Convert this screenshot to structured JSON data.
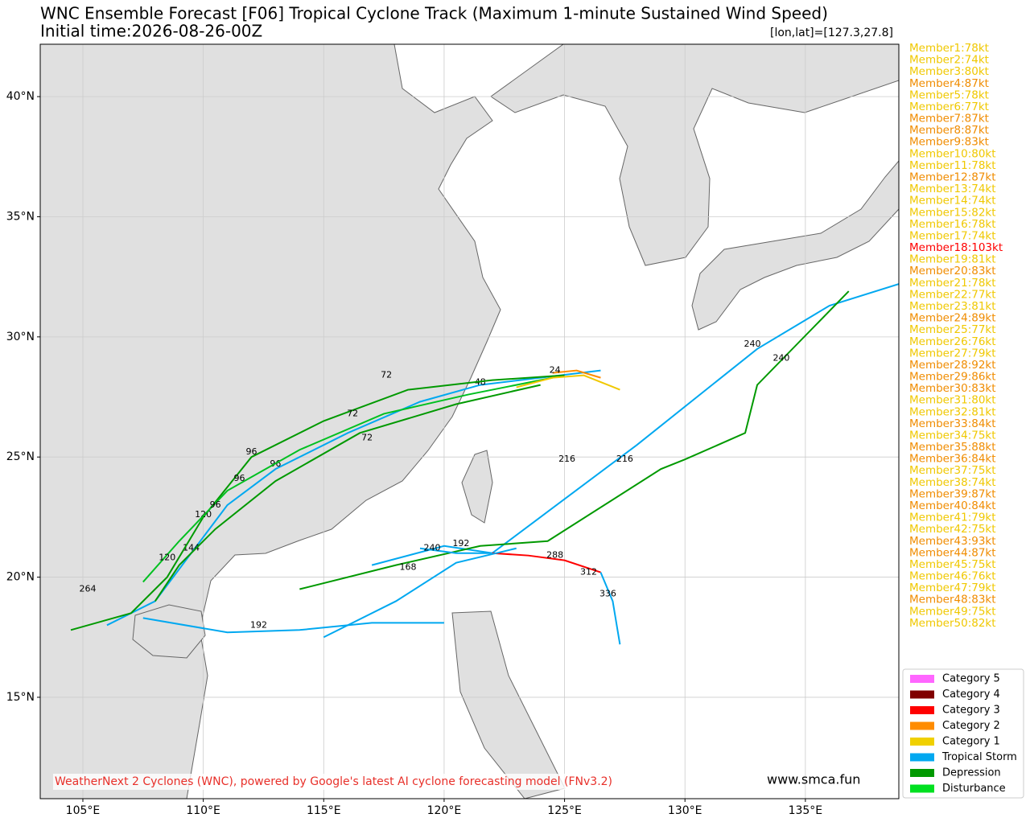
{
  "chart_data": {
    "type": "track",
    "title": "WNC Ensemble Forecast [F06] Tropical Cyclone Track (Maximum 1-minute Sustained Wind Speed)",
    "subtitle": "Initial time:2026-08-26-00Z",
    "position_label": "[lon,lat]=[127.3,27.8]",
    "footer": "WeatherNext 2 Cyclones (WNC), powered by Google's latest AI cyclone forecasting model (FNv3.2)",
    "website": "www.smca.fun",
    "xlim": [
      103.23,
      138.88
    ],
    "ylim": [
      10.78,
      42.18
    ],
    "xticks": [
      {
        "value": 105,
        "label": "105°E"
      },
      {
        "value": 110,
        "label": "110°E"
      },
      {
        "value": 115,
        "label": "115°E"
      },
      {
        "value": 120,
        "label": "120°E"
      },
      {
        "value": 125,
        "label": "125°E"
      },
      {
        "value": 130,
        "label": "130°E"
      },
      {
        "value": 135,
        "label": "135°E"
      }
    ],
    "yticks": [
      {
        "value": 15,
        "label": "15°N"
      },
      {
        "value": 20,
        "label": "20°N"
      },
      {
        "value": 25,
        "label": "25°N"
      },
      {
        "value": 30,
        "label": "30°N"
      },
      {
        "value": 35,
        "label": "35°N"
      },
      {
        "value": 40,
        "label": "40°N"
      }
    ],
    "grid": true,
    "members": [
      {
        "text": "Member1:78kt",
        "color": "#f0c800"
      },
      {
        "text": "Member2:74kt",
        "color": "#f0c800"
      },
      {
        "text": "Member3:80kt",
        "color": "#f0c800"
      },
      {
        "text": "Member4:87kt",
        "color": "#f08c00"
      },
      {
        "text": "Member5:78kt",
        "color": "#f0c800"
      },
      {
        "text": "Member6:77kt",
        "color": "#f0c800"
      },
      {
        "text": "Member7:87kt",
        "color": "#f08c00"
      },
      {
        "text": "Member8:87kt",
        "color": "#f08c00"
      },
      {
        "text": "Member9:83kt",
        "color": "#f08c00"
      },
      {
        "text": "Member10:80kt",
        "color": "#f0c800"
      },
      {
        "text": "Member11:78kt",
        "color": "#f0c800"
      },
      {
        "text": "Member12:87kt",
        "color": "#f08c00"
      },
      {
        "text": "Member13:74kt",
        "color": "#f0c800"
      },
      {
        "text": "Member14:74kt",
        "color": "#f0c800"
      },
      {
        "text": "Member15:82kt",
        "color": "#f0c800"
      },
      {
        "text": "Member16:78kt",
        "color": "#f0c800"
      },
      {
        "text": "Member17:74kt",
        "color": "#f0c800"
      },
      {
        "text": "Member18:103kt",
        "color": "#ff0000"
      },
      {
        "text": "Member19:81kt",
        "color": "#f0c800"
      },
      {
        "text": "Member20:83kt",
        "color": "#f08c00"
      },
      {
        "text": "Member21:78kt",
        "color": "#f0c800"
      },
      {
        "text": "Member22:77kt",
        "color": "#f0c800"
      },
      {
        "text": "Member23:81kt",
        "color": "#f0c800"
      },
      {
        "text": "Member24:89kt",
        "color": "#f08c00"
      },
      {
        "text": "Member25:77kt",
        "color": "#f0c800"
      },
      {
        "text": "Member26:76kt",
        "color": "#f0c800"
      },
      {
        "text": "Member27:79kt",
        "color": "#f0c800"
      },
      {
        "text": "Member28:92kt",
        "color": "#f08c00"
      },
      {
        "text": "Member29:86kt",
        "color": "#f08c00"
      },
      {
        "text": "Member30:83kt",
        "color": "#f08c00"
      },
      {
        "text": "Member31:80kt",
        "color": "#f0c800"
      },
      {
        "text": "Member32:81kt",
        "color": "#f0c800"
      },
      {
        "text": "Member33:84kt",
        "color": "#f08c00"
      },
      {
        "text": "Member34:75kt",
        "color": "#f0c800"
      },
      {
        "text": "Member35:88kt",
        "color": "#f08c00"
      },
      {
        "text": "Member36:84kt",
        "color": "#f08c00"
      },
      {
        "text": "Member37:75kt",
        "color": "#f0c800"
      },
      {
        "text": "Member38:74kt",
        "color": "#f0c800"
      },
      {
        "text": "Member39:87kt",
        "color": "#f08c00"
      },
      {
        "text": "Member40:84kt",
        "color": "#f08c00"
      },
      {
        "text": "Member41:79kt",
        "color": "#f0c800"
      },
      {
        "text": "Member42:75kt",
        "color": "#f0c800"
      },
      {
        "text": "Member43:93kt",
        "color": "#f08c00"
      },
      {
        "text": "Member44:87kt",
        "color": "#f08c00"
      },
      {
        "text": "Member45:75kt",
        "color": "#f0c800"
      },
      {
        "text": "Member46:76kt",
        "color": "#f0c800"
      },
      {
        "text": "Member47:79kt",
        "color": "#f0c800"
      },
      {
        "text": "Member48:83kt",
        "color": "#f08c00"
      },
      {
        "text": "Member49:75kt",
        "color": "#f0c800"
      },
      {
        "text": "Member50:82kt",
        "color": "#f0c800"
      }
    ],
    "legend": [
      {
        "name": "Category 5",
        "color": "#ff66ff"
      },
      {
        "name": "Category 4",
        "color": "#800000"
      },
      {
        "name": "Category 3",
        "color": "#ff0000"
      },
      {
        "name": "Category 2",
        "color": "#ff8c00"
      },
      {
        "name": "Category 1",
        "color": "#f0d000"
      },
      {
        "name": "Tropical Storm",
        "color": "#00a8f0"
      },
      {
        "name": "Depression",
        "color": "#009900"
      },
      {
        "name": "Disturbance",
        "color": "#00e020"
      }
    ],
    "tracks": [
      {
        "color": "#00a8f0",
        "lon": [
          126.5,
          124,
          121.5,
          119,
          116,
          113,
          111,
          109.5,
          108,
          106
        ],
        "lat": [
          28.6,
          28.3,
          28,
          27.3,
          26,
          24.5,
          23,
          21,
          19,
          18
        ],
        "labels": [
          {
            "hour": 48,
            "lon": 121.5,
            "lat": 28.1
          },
          {
            "hour": 96,
            "lon": 113,
            "lat": 24.7
          },
          {
            "hour": 144,
            "lon": 109.5,
            "lat": 21.2
          }
        ]
      },
      {
        "color": "#009900",
        "lon": [
          125,
          122,
          118.5,
          115,
          112,
          110,
          108.5,
          107,
          104.5
        ],
        "lat": [
          28.4,
          28.2,
          27.8,
          26.5,
          25,
          22.5,
          20,
          18.5,
          17.8
        ],
        "labels": [
          {
            "hour": 72,
            "lon": 117.6,
            "lat": 28.4
          },
          {
            "hour": 96,
            "lon": 112,
            "lat": 25.2
          },
          {
            "hour": 120,
            "lon": 110,
            "lat": 22.6
          },
          {
            "hour": 264,
            "lon": 105.2,
            "lat": 19.5
          }
        ]
      },
      {
        "color": "#00c020",
        "lon": [
          124.5,
          121,
          117.5,
          114,
          111,
          109,
          107.5
        ],
        "lat": [
          28.3,
          27.6,
          26.8,
          25.3,
          23.6,
          21.5,
          19.8
        ],
        "labels": [
          {
            "hour": 72,
            "lon": 116.2,
            "lat": 26.8
          },
          {
            "hour": 96,
            "lon": 111.5,
            "lat": 24.1
          },
          {
            "hour": 120,
            "lon": 108.5,
            "lat": 20.8
          }
        ]
      },
      {
        "color": "#009900",
        "lon": [
          124,
          120.5,
          116.5,
          113,
          110.5,
          109,
          108
        ],
        "lat": [
          28,
          27.2,
          26,
          24,
          22,
          20.5,
          19
        ],
        "labels": [
          {
            "hour": 72,
            "lon": 116.8,
            "lat": 25.8
          },
          {
            "hour": 96,
            "lon": 110.5,
            "lat": 23
          }
        ]
      },
      {
        "color": "#00a8f0",
        "lon": [
          117,
          120,
          122,
          124,
          128,
          133,
          136,
          138.88
        ],
        "lat": [
          20.5,
          21.3,
          21,
          22.5,
          25.5,
          29.5,
          31.3,
          32.2
        ],
        "labels": [
          {
            "hour": 216,
            "lon": 125.1,
            "lat": 24.9
          },
          {
            "hour": 240,
            "lon": 132.8,
            "lat": 29.7
          }
        ]
      },
      {
        "color": "#009900",
        "lon": [
          114,
          118,
          121.5,
          124.3,
          129,
          130,
          132.5,
          133,
          136.8
        ],
        "lat": [
          19.5,
          20.5,
          21.3,
          21.5,
          24.5,
          24.9,
          26,
          28,
          31.9
        ],
        "labels": [
          {
            "hour": 216,
            "lon": 127.5,
            "lat": 24.9
          },
          {
            "hour": 240,
            "lon": 134,
            "lat": 29.1
          }
        ]
      },
      {
        "color": "#00a8f0",
        "lon": [
          119,
          120.5,
          122
        ],
        "lat": [
          21.2,
          21,
          21
        ],
        "labels": [
          {
            "hour": 240,
            "lon": 119.5,
            "lat": 21.2
          },
          {
            "hour": 192,
            "lon": 120.7,
            "lat": 21.4
          }
        ]
      },
      {
        "color": "#ff0000",
        "lon": [
          122,
          123.5,
          125,
          126.5
        ],
        "lat": [
          21,
          20.9,
          20.7,
          20.2
        ],
        "labels": [
          {
            "hour": 288,
            "lon": 124.6,
            "lat": 20.9
          },
          {
            "hour": 312,
            "lon": 126,
            "lat": 20.2
          }
        ]
      },
      {
        "color": "#00a8f0",
        "lon": [
          126.5,
          127,
          127.3
        ],
        "lat": [
          20.2,
          19,
          17.2
        ],
        "labels": [
          {
            "hour": 336,
            "lon": 126.8,
            "lat": 19.3
          }
        ]
      },
      {
        "color": "#f0c800",
        "lon": [
          123,
          124.5,
          125.8,
          127.3
        ],
        "lat": [
          27.9,
          28.3,
          28.4,
          27.8
        ],
        "labels": []
      },
      {
        "color": "#ff8c00",
        "lon": [
          124.5,
          125.5,
          126.5
        ],
        "lat": [
          28.5,
          28.6,
          28.3
        ],
        "labels": [
          {
            "hour": 24,
            "lon": 124.6,
            "lat": 28.6
          }
        ]
      },
      {
        "color": "#00a8f0",
        "lon": [
          115,
          118,
          120.5,
          123
        ],
        "lat": [
          17.5,
          19,
          20.6,
          21.2
        ],
        "labels": [
          {
            "hour": 168,
            "lon": 118.5,
            "lat": 20.4
          }
        ]
      },
      {
        "color": "#00a8f0",
        "lon": [
          107.5,
          111,
          114,
          117,
          120
        ],
        "lat": [
          18.3,
          17.7,
          17.8,
          18.1,
          18.1
        ],
        "labels": [
          {
            "hour": 192,
            "lon": 112.3,
            "lat": 18
          }
        ]
      }
    ]
  }
}
